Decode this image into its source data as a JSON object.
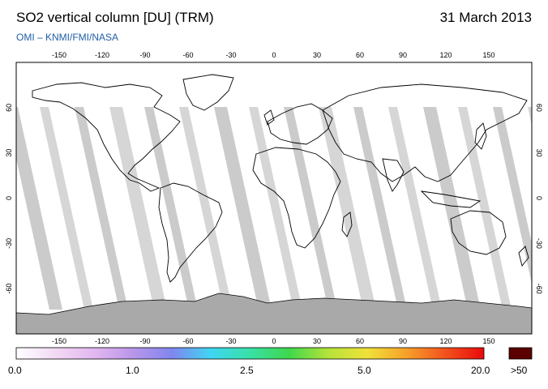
{
  "header": {
    "title": "SO2 vertical column [DU] (TRM)",
    "date": "31 March 2013",
    "credit": "OMI  –  KNMI/FMI/NASA"
  },
  "map": {
    "lon_ticks": [
      "-150",
      "-120",
      "-90",
      "-60",
      "-30",
      "0",
      "30",
      "60",
      "90",
      "120",
      "150"
    ],
    "lat_ticks": [
      "60",
      "30",
      "0",
      "-30",
      "-60"
    ],
    "lon_range": [
      -180,
      180
    ],
    "lat_range": [
      -90,
      90
    ],
    "gap_color": "#c8c8c8",
    "no_data_color": "#a9a9a9"
  },
  "colorbar": {
    "labels": [
      "0.0",
      "1.0",
      "2.5",
      "5.0",
      "20.0"
    ],
    "overflow_label": ">50",
    "overflow_color": "#5a0000",
    "stops": [
      "#ffffff",
      "#f2d9f5",
      "#e3b7f0",
      "#b996ea",
      "#7f86ee",
      "#3fd6f2",
      "#38e0a6",
      "#3ed84c",
      "#b5e23a",
      "#f0e23a",
      "#f7a12a",
      "#f2521e",
      "#e80a0a"
    ]
  }
}
